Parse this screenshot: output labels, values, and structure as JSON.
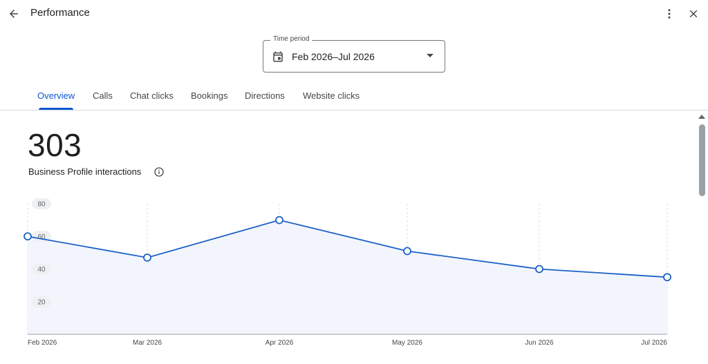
{
  "header": {
    "title": "Performance",
    "back_icon": "arrow-left-icon",
    "more_icon": "more-vert-icon",
    "close_icon": "close-icon"
  },
  "time_period": {
    "label": "Time period",
    "value": "Feb 2026–Jul 2026",
    "icon": "calendar-icon"
  },
  "tabs": [
    {
      "label": "Overview",
      "active": true
    },
    {
      "label": "Calls",
      "active": false
    },
    {
      "label": "Chat clicks",
      "active": false
    },
    {
      "label": "Bookings",
      "active": false
    },
    {
      "label": "Directions",
      "active": false
    },
    {
      "label": "Website clicks",
      "active": false
    }
  ],
  "summary": {
    "total": "303",
    "label": "Business Profile interactions",
    "info_icon": "info-icon"
  },
  "colors": {
    "accent": "#0b57d0",
    "line": "#1a61c7",
    "area": "#f3f5fd"
  },
  "chart_data": {
    "type": "area",
    "categories": [
      "Feb 2026",
      "Mar 2026",
      "Apr 2026",
      "May 2026",
      "Jun 2026",
      "Jul 2026"
    ],
    "values": [
      60,
      47,
      70,
      51,
      40,
      35
    ],
    "y_ticks": [
      20,
      40,
      60,
      80
    ],
    "ylim": [
      0,
      80
    ],
    "grid": "vertical-dashed",
    "legend": "none",
    "title": "",
    "xlabel": "",
    "ylabel": ""
  }
}
